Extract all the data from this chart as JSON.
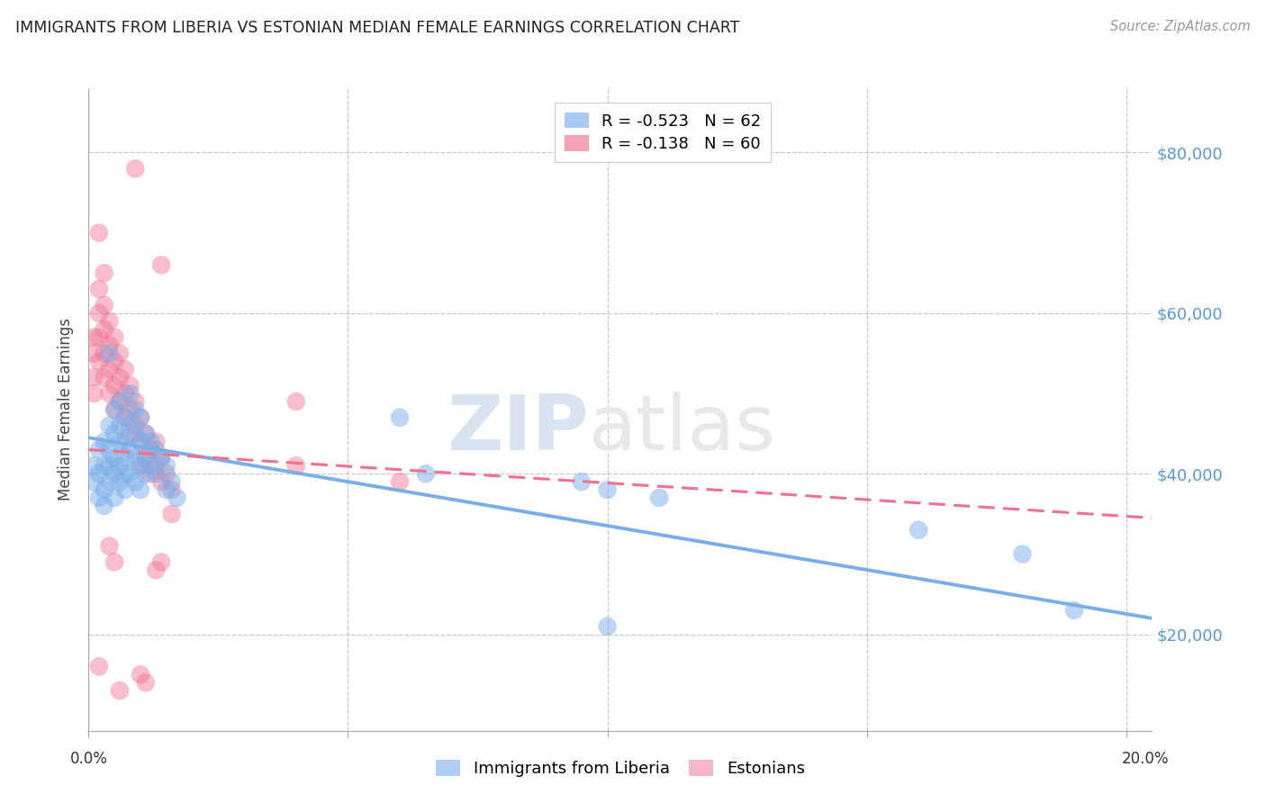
{
  "title": "IMMIGRANTS FROM LIBERIA VS ESTONIAN MEDIAN FEMALE EARNINGS CORRELATION CHART",
  "source": "Source: ZipAtlas.com",
  "ylabel": "Median Female Earnings",
  "ytick_labels": [
    "$20,000",
    "$40,000",
    "$60,000",
    "$80,000"
  ],
  "ytick_values": [
    20000,
    40000,
    60000,
    80000
  ],
  "xlim": [
    0.0,
    0.205
  ],
  "ylim": [
    8000,
    88000
  ],
  "legend_entries": [
    {
      "label": "R = -0.523   N = 62",
      "color": "#7aaee8"
    },
    {
      "label": "R = -0.138   N = 60",
      "color": "#f07090"
    }
  ],
  "legend_labels_bottom": [
    "Immigrants from Liberia",
    "Estonians"
  ],
  "watermark_zip": "ZIP",
  "watermark_atlas": "atlas",
  "blue_color": "#7aaee8",
  "pink_color": "#f07090",
  "blue_scatter": [
    [
      0.001,
      41000
    ],
    [
      0.001,
      39000
    ],
    [
      0.002,
      43000
    ],
    [
      0.002,
      40000
    ],
    [
      0.002,
      37000
    ],
    [
      0.003,
      44000
    ],
    [
      0.003,
      41000
    ],
    [
      0.003,
      38000
    ],
    [
      0.003,
      36000
    ],
    [
      0.004,
      55000
    ],
    [
      0.004,
      46000
    ],
    [
      0.004,
      43000
    ],
    [
      0.004,
      41000
    ],
    [
      0.004,
      39000
    ],
    [
      0.005,
      48000
    ],
    [
      0.005,
      45000
    ],
    [
      0.005,
      42000
    ],
    [
      0.005,
      40000
    ],
    [
      0.005,
      37000
    ],
    [
      0.006,
      49000
    ],
    [
      0.006,
      46000
    ],
    [
      0.006,
      44000
    ],
    [
      0.006,
      41000
    ],
    [
      0.006,
      39000
    ],
    [
      0.007,
      47000
    ],
    [
      0.007,
      44000
    ],
    [
      0.007,
      42000
    ],
    [
      0.007,
      40000
    ],
    [
      0.007,
      38000
    ],
    [
      0.008,
      50000
    ],
    [
      0.008,
      46000
    ],
    [
      0.008,
      43000
    ],
    [
      0.008,
      40000
    ],
    [
      0.009,
      48000
    ],
    [
      0.009,
      45000
    ],
    [
      0.009,
      42000
    ],
    [
      0.009,
      39000
    ],
    [
      0.01,
      47000
    ],
    [
      0.01,
      44000
    ],
    [
      0.01,
      41000
    ],
    [
      0.01,
      38000
    ],
    [
      0.011,
      45000
    ],
    [
      0.011,
      42000
    ],
    [
      0.011,
      40000
    ],
    [
      0.012,
      44000
    ],
    [
      0.012,
      41000
    ],
    [
      0.013,
      43000
    ],
    [
      0.013,
      40000
    ],
    [
      0.014,
      42000
    ],
    [
      0.015,
      41000
    ],
    [
      0.015,
      38000
    ],
    [
      0.016,
      39000
    ],
    [
      0.017,
      37000
    ],
    [
      0.06,
      47000
    ],
    [
      0.065,
      40000
    ],
    [
      0.095,
      39000
    ],
    [
      0.1,
      38000
    ],
    [
      0.11,
      37000
    ],
    [
      0.16,
      33000
    ],
    [
      0.18,
      30000
    ],
    [
      0.19,
      23000
    ],
    [
      0.1,
      21000
    ]
  ],
  "pink_scatter": [
    [
      0.001,
      55000
    ],
    [
      0.001,
      57000
    ],
    [
      0.001,
      52000
    ],
    [
      0.001,
      50000
    ],
    [
      0.002,
      70000
    ],
    [
      0.002,
      63000
    ],
    [
      0.002,
      60000
    ],
    [
      0.002,
      57000
    ],
    [
      0.002,
      54000
    ],
    [
      0.003,
      65000
    ],
    [
      0.003,
      61000
    ],
    [
      0.003,
      58000
    ],
    [
      0.003,
      55000
    ],
    [
      0.003,
      52000
    ],
    [
      0.004,
      59000
    ],
    [
      0.004,
      56000
    ],
    [
      0.004,
      53000
    ],
    [
      0.004,
      50000
    ],
    [
      0.005,
      57000
    ],
    [
      0.005,
      54000
    ],
    [
      0.005,
      51000
    ],
    [
      0.005,
      48000
    ],
    [
      0.006,
      55000
    ],
    [
      0.006,
      52000
    ],
    [
      0.006,
      49000
    ],
    [
      0.007,
      53000
    ],
    [
      0.007,
      50000
    ],
    [
      0.007,
      47000
    ],
    [
      0.008,
      51000
    ],
    [
      0.008,
      48000
    ],
    [
      0.008,
      45000
    ],
    [
      0.009,
      49000
    ],
    [
      0.009,
      46000
    ],
    [
      0.01,
      47000
    ],
    [
      0.01,
      44000
    ],
    [
      0.01,
      41000
    ],
    [
      0.011,
      45000
    ],
    [
      0.011,
      42000
    ],
    [
      0.012,
      43000
    ],
    [
      0.012,
      40000
    ],
    [
      0.013,
      44000
    ],
    [
      0.013,
      41000
    ],
    [
      0.014,
      42000
    ],
    [
      0.014,
      39000
    ],
    [
      0.015,
      40000
    ],
    [
      0.016,
      38000
    ],
    [
      0.016,
      35000
    ],
    [
      0.04,
      49000
    ],
    [
      0.04,
      41000
    ],
    [
      0.009,
      78000
    ],
    [
      0.014,
      66000
    ],
    [
      0.004,
      31000
    ],
    [
      0.005,
      29000
    ],
    [
      0.013,
      28000
    ],
    [
      0.014,
      29000
    ],
    [
      0.002,
      16000
    ],
    [
      0.006,
      13000
    ],
    [
      0.011,
      14000
    ],
    [
      0.01,
      15000
    ],
    [
      0.06,
      39000
    ]
  ],
  "blue_line": {
    "x0": 0.0,
    "y0": 44500,
    "x1": 0.205,
    "y1": 22000
  },
  "pink_line": {
    "x0": 0.0,
    "y0": 43000,
    "x1": 0.205,
    "y1": 34500
  },
  "ytick_color": "#5599dd",
  "title_color": "#222222",
  "background_color": "#ffffff",
  "grid_color": "#bbbbbb"
}
